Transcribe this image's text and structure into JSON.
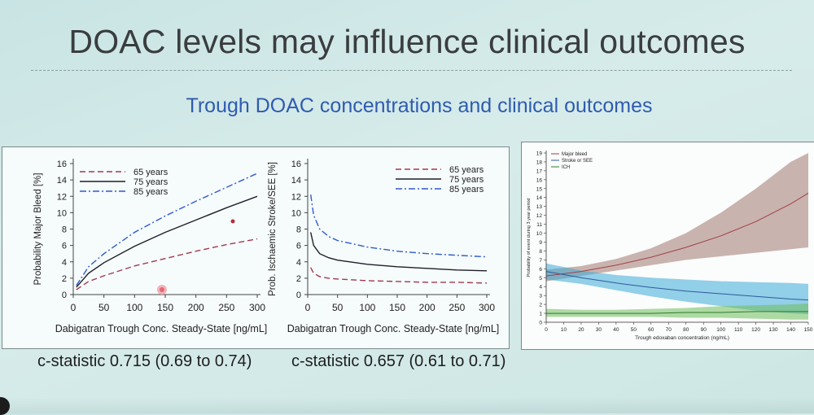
{
  "slide": {
    "title": "DOAC levels may influence clinical outcomes",
    "subtitle": "Trough DOAC concentrations and clinical outcomes"
  },
  "stats": {
    "left": "c-statistic 0.715 (0.69 to 0.74)",
    "middle": "c-statistic 0.657 (0.61 to 0.71)"
  },
  "colors": {
    "age65": "#a03a4e",
    "age75": "#1f1f28",
    "age85": "#2f5bd0",
    "major_bleed": "#a0404a",
    "stroke_see": "#2f5a9a",
    "ich": "#2e7a2e"
  },
  "chart_data": [
    {
      "type": "line",
      "xlabel": "Dabigatran Trough Conc. Steady-State [ng/mL]",
      "ylabel": "Probability Major Bleed [%]",
      "xlim": [
        0,
        300
      ],
      "ylim": [
        0,
        16
      ],
      "xticks": [
        0,
        50,
        100,
        150,
        200,
        250,
        300
      ],
      "yticks": [
        0,
        2,
        4,
        6,
        8,
        10,
        12,
        14,
        16
      ],
      "legend_position": "top-left",
      "series": [
        {
          "name": "65 years",
          "style": "dashed",
          "color_key": "age65",
          "x": [
            5,
            25,
            50,
            100,
            150,
            200,
            250,
            300
          ],
          "y": [
            0.6,
            1.6,
            2.3,
            3.5,
            4.4,
            5.3,
            6.1,
            6.8
          ]
        },
        {
          "name": "75 years",
          "style": "solid",
          "color_key": "age75",
          "x": [
            5,
            25,
            50,
            100,
            150,
            200,
            250,
            300
          ],
          "y": [
            0.9,
            2.6,
            3.9,
            5.9,
            7.6,
            9.1,
            10.6,
            12.0
          ]
        },
        {
          "name": "85 years",
          "style": "dashdot",
          "color_key": "age85",
          "x": [
            5,
            25,
            50,
            100,
            150,
            200,
            250,
            300
          ],
          "y": [
            1.1,
            3.4,
            5.0,
            7.6,
            9.6,
            11.4,
            13.1,
            14.8
          ]
        }
      ]
    },
    {
      "type": "line",
      "xlabel": "Dabigatran Trough Conc. Steady-State [ng/mL]",
      "ylabel": "Prob. Ischaemic Stroke/SEE [%]",
      "xlim": [
        0,
        300
      ],
      "ylim": [
        0,
        16
      ],
      "xticks": [
        0,
        50,
        100,
        150,
        200,
        250,
        300
      ],
      "yticks": [
        0,
        2,
        4,
        6,
        8,
        10,
        12,
        14,
        16
      ],
      "legend_position": "top-right",
      "series": [
        {
          "name": "65 years",
          "style": "dashed",
          "color_key": "age65",
          "x": [
            5,
            10,
            20,
            35,
            50,
            100,
            150,
            200,
            250,
            300
          ],
          "y": [
            3.3,
            2.6,
            2.2,
            2.0,
            1.9,
            1.7,
            1.6,
            1.5,
            1.5,
            1.4
          ]
        },
        {
          "name": "75 years",
          "style": "solid",
          "color_key": "age75",
          "x": [
            5,
            10,
            20,
            35,
            50,
            100,
            150,
            200,
            250,
            300
          ],
          "y": [
            7.6,
            6.0,
            5.0,
            4.5,
            4.2,
            3.7,
            3.4,
            3.2,
            3.0,
            2.9
          ]
        },
        {
          "name": "85 years",
          "style": "dashdot",
          "color_key": "age85",
          "x": [
            5,
            10,
            20,
            35,
            50,
            100,
            150,
            200,
            250,
            300
          ],
          "y": [
            12.2,
            9.7,
            8.0,
            7.1,
            6.6,
            5.8,
            5.3,
            5.0,
            4.8,
            4.6
          ]
        }
      ]
    },
    {
      "type": "area",
      "xlabel": "Trough edoxaban concentration (ng/mL)",
      "ylabel": "Probability of event during 3 year period",
      "xlim": [
        0,
        150
      ],
      "ylim": [
        0,
        19
      ],
      "xticks": [
        0,
        10,
        20,
        30,
        40,
        50,
        60,
        70,
        80,
        90,
        100,
        110,
        120,
        130,
        140,
        150
      ],
      "yticks": [
        0,
        1,
        2,
        3,
        4,
        5,
        6,
        7,
        8,
        9,
        10,
        11,
        12,
        13,
        14,
        15,
        16,
        17,
        18,
        19
      ],
      "legend_position": "top-left",
      "series": [
        {
          "name": "Major bleed",
          "color_key": "major_bleed",
          "x": [
            0,
            20,
            40,
            60,
            80,
            100,
            120,
            140,
            150
          ],
          "y": [
            5.2,
            5.7,
            6.4,
            7.3,
            8.4,
            9.7,
            11.3,
            13.3,
            14.5
          ],
          "lower": [
            4.6,
            5.2,
            5.8,
            6.4,
            7.0,
            7.4,
            7.8,
            8.2,
            8.4
          ],
          "upper": [
            5.9,
            6.3,
            7.1,
            8.3,
            10.0,
            12.3,
            15.0,
            18.0,
            19.0
          ]
        },
        {
          "name": "Stroke or SEE",
          "color_key": "stroke_see",
          "x": [
            0,
            20,
            40,
            60,
            80,
            100,
            120,
            140,
            150
          ],
          "y": [
            5.7,
            5.0,
            4.4,
            3.9,
            3.5,
            3.2,
            2.9,
            2.6,
            2.5
          ],
          "lower": [
            4.8,
            4.3,
            3.6,
            2.9,
            2.3,
            1.8,
            1.3,
            1.0,
            0.9
          ],
          "upper": [
            6.6,
            5.8,
            5.3,
            5.0,
            4.8,
            4.6,
            4.5,
            4.4,
            4.3
          ]
        },
        {
          "name": "ICH",
          "color_key": "ich",
          "x": [
            0,
            20,
            40,
            60,
            80,
            100,
            120,
            140,
            150
          ],
          "y": [
            1.0,
            1.0,
            1.0,
            1.0,
            1.1,
            1.1,
            1.2,
            1.2,
            1.2
          ],
          "lower": [
            0.6,
            0.6,
            0.6,
            0.6,
            0.5,
            0.5,
            0.4,
            0.3,
            0.3
          ],
          "upper": [
            1.5,
            1.4,
            1.4,
            1.5,
            1.6,
            1.8,
            1.9,
            2.0,
            2.1
          ]
        }
      ]
    }
  ]
}
